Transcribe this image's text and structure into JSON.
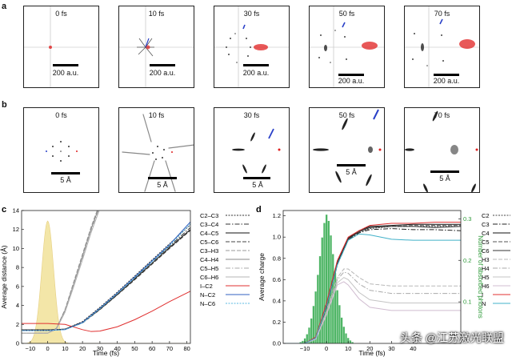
{
  "panel_a": {
    "label": "a",
    "frames": [
      {
        "time": "0 fs",
        "scale": "200 a.u."
      },
      {
        "time": "10 fs",
        "scale": "200 a.u."
      },
      {
        "time": "30 fs",
        "scale": "200 a.u."
      },
      {
        "time": "50 fs",
        "scale": "200 a.u."
      },
      {
        "time": "70 fs",
        "scale": "200 a.u."
      }
    ]
  },
  "panel_b": {
    "label": "b",
    "frames": [
      {
        "time": "0 fs",
        "scale": "5 Å"
      },
      {
        "time": "10 fs",
        "scale": "5 Å"
      },
      {
        "time": "30 fs",
        "scale": "5 Å"
      },
      {
        "time": "50 fs",
        "scale": "5 Å"
      },
      {
        "time": "70 fs",
        "scale": "5 Å"
      }
    ]
  },
  "watermark": "头条 @江苏激光联盟",
  "colors": {
    "iodine": "#e02020",
    "nitrogen": "#2a40c8",
    "pulse": "#f3e6a8",
    "photons": "#2fa84a",
    "photons_axis": "#2f9a3a"
  },
  "chart_data": [
    {
      "panel": "c",
      "type": "line",
      "xlabel": "Time (fs)",
      "ylabel": "Average distance (Å)",
      "xlim": [
        -15,
        82
      ],
      "ylim": [
        0,
        14
      ],
      "xticks": [
        -10,
        0,
        10,
        20,
        30,
        40,
        50,
        60,
        70,
        80
      ],
      "yticks": [
        0,
        2,
        4,
        6,
        8,
        10,
        12,
        14
      ],
      "legend_position": "right",
      "pulse": {
        "center": 0,
        "width": 3.4,
        "peak": 12.9
      },
      "series": [
        {
          "name": "C2–C3",
          "color": "#333333",
          "dash": "2,1.5",
          "x": [
            -15,
            0,
            10,
            20,
            30,
            40,
            50,
            60,
            70,
            82
          ],
          "y": [
            1.42,
            1.42,
            1.5,
            2.3,
            3.8,
            5.4,
            7.1,
            8.8,
            10.5,
            12.5
          ]
        },
        {
          "name": "C3–C4",
          "color": "#333333",
          "dash": "6,2,1.5,2",
          "x": [
            -15,
            0,
            10,
            20,
            30,
            40,
            50,
            60,
            70,
            82
          ],
          "y": [
            1.42,
            1.42,
            1.5,
            2.25,
            3.7,
            5.3,
            6.95,
            8.6,
            10.25,
            12.2
          ]
        },
        {
          "name": "C4–C5",
          "color": "#111111",
          "dash": "",
          "x": [
            -15,
            0,
            10,
            20,
            30,
            40,
            50,
            60,
            70,
            82
          ],
          "y": [
            1.42,
            1.42,
            1.5,
            2.2,
            3.6,
            5.15,
            6.8,
            8.45,
            10.1,
            12.0
          ]
        },
        {
          "name": "C5–C6",
          "color": "#444444",
          "dash": "5,2",
          "x": [
            -15,
            0,
            10,
            20,
            30,
            40,
            50,
            60,
            70,
            82
          ],
          "y": [
            1.42,
            1.42,
            1.5,
            2.15,
            3.55,
            5.1,
            6.7,
            8.35,
            10.0,
            11.9
          ]
        },
        {
          "name": "C3–H3",
          "color": "#999999",
          "dash": "5,2",
          "x": [
            -15,
            0,
            5,
            10,
            15,
            20,
            25,
            30
          ],
          "y": [
            1.08,
            1.08,
            1.6,
            3.6,
            6.5,
            9.4,
            12.3,
            14.8
          ]
        },
        {
          "name": "C4–H4",
          "color": "#888888",
          "dash": "",
          "x": [
            -15,
            0,
            5,
            10,
            15,
            20,
            25,
            30
          ],
          "y": [
            1.08,
            1.08,
            1.55,
            3.5,
            6.3,
            9.2,
            12.1,
            14.6
          ]
        },
        {
          "name": "C5–H5",
          "color": "#aaaaaa",
          "dash": "6,2,1.5,2",
          "x": [
            -15,
            0,
            5,
            10,
            15,
            20,
            25,
            30
          ],
          "y": [
            1.08,
            1.08,
            1.5,
            3.4,
            6.2,
            9.0,
            11.9,
            14.4
          ]
        },
        {
          "name": "C6–H6",
          "color": "#b5b5b5",
          "dash": "",
          "x": [
            -15,
            0,
            5,
            10,
            15,
            20,
            25,
            30
          ],
          "y": [
            1.08,
            1.08,
            1.5,
            3.3,
            6.0,
            8.8,
            11.7,
            14.2
          ]
        },
        {
          "name": "I–C2",
          "color": "#e03030",
          "dash": "",
          "x": [
            -15,
            0,
            10,
            20,
            25,
            30,
            40,
            50,
            60,
            70,
            82
          ],
          "y": [
            2.1,
            2.1,
            2.0,
            1.45,
            1.25,
            1.3,
            1.75,
            2.5,
            3.4,
            4.4,
            5.5
          ]
        },
        {
          "name": "N–C2",
          "color": "#3060c0",
          "dash": "",
          "x": [
            -15,
            0,
            10,
            20,
            30,
            40,
            50,
            60,
            70,
            82
          ],
          "y": [
            1.35,
            1.35,
            1.45,
            2.2,
            3.7,
            5.3,
            7.0,
            8.7,
            10.4,
            12.8
          ]
        },
        {
          "name": "N–C6",
          "color": "#58b8e0",
          "dash": "2,1.5",
          "x": [
            -15,
            0,
            10,
            20,
            30,
            40,
            50,
            60,
            70,
            82
          ],
          "y": [
            1.35,
            1.35,
            1.45,
            2.15,
            3.65,
            5.25,
            6.9,
            8.6,
            10.3,
            12.6
          ]
        }
      ]
    },
    {
      "panel": "d",
      "type": "line",
      "xlabel": "Time (fs)",
      "ylabel": "Average charge",
      "y2label": "Number of absorbed photons",
      "xlim": [
        -20,
        62
      ],
      "ylim": [
        0,
        1.25
      ],
      "y2lim": [
        0,
        0.32
      ],
      "xticks": [
        -10,
        0,
        10,
        20,
        30,
        40
      ],
      "yticks": [
        0,
        0.2,
        0.4,
        0.6,
        0.8,
        1.0,
        1.2
      ],
      "y2ticks": [
        0.1,
        0.2,
        0.3
      ],
      "legend_position": "right",
      "histogram": {
        "x": [
          -12,
          -11,
          -10,
          -9,
          -8,
          -7,
          -6,
          -5,
          -4,
          -3,
          -2,
          -1,
          0,
          1,
          2,
          3,
          4,
          5,
          6,
          7,
          8,
          9,
          10,
          11,
          12
        ],
        "y": [
          0.003,
          0.006,
          0.012,
          0.022,
          0.038,
          0.06,
          0.09,
          0.125,
          0.165,
          0.21,
          0.255,
          0.29,
          0.31,
          0.295,
          0.26,
          0.215,
          0.17,
          0.128,
          0.092,
          0.062,
          0.04,
          0.024,
          0.013,
          0.007,
          0.003
        ]
      },
      "series": [
        {
          "name": "C2",
          "color": "#444444",
          "dash": "2,1.5",
          "x": [
            -20,
            -10,
            -5,
            0,
            5,
            10,
            15,
            20,
            30,
            40,
            50,
            62
          ],
          "y": [
            0,
            0,
            0.05,
            0.35,
            0.75,
            0.98,
            1.05,
            1.08,
            1.1,
            1.1,
            1.1,
            1.1
          ]
        },
        {
          "name": "C3",
          "color": "#222222",
          "dash": "6,2,1.5,2",
          "x": [
            -20,
            -10,
            -5,
            0,
            5,
            10,
            15,
            20,
            30,
            40,
            50,
            62
          ],
          "y": [
            0,
            0,
            0.05,
            0.34,
            0.74,
            0.97,
            1.04,
            1.07,
            1.08,
            1.07,
            1.07,
            1.06
          ]
        },
        {
          "name": "C4",
          "color": "#111111",
          "dash": "",
          "x": [
            -20,
            -10,
            -5,
            0,
            5,
            10,
            15,
            20,
            30,
            40,
            50,
            62
          ],
          "y": [
            0,
            0,
            0.05,
            0.36,
            0.76,
            0.99,
            1.06,
            1.1,
            1.11,
            1.12,
            1.12,
            1.12
          ]
        },
        {
          "name": "C5",
          "color": "#555555",
          "dash": "5,2",
          "x": [
            -20,
            -10,
            -5,
            0,
            5,
            10,
            15,
            20,
            30,
            40,
            50,
            62
          ],
          "y": [
            0,
            0,
            0.05,
            0.35,
            0.75,
            0.98,
            1.05,
            1.09,
            1.1,
            1.11,
            1.11,
            1.11
          ]
        },
        {
          "name": "C6",
          "color": "#333333",
          "dash": "",
          "x": [
            -20,
            -10,
            -5,
            0,
            5,
            10,
            15,
            20,
            30,
            40,
            50,
            62
          ],
          "y": [
            0,
            0,
            0.05,
            0.34,
            0.74,
            0.98,
            1.05,
            1.09,
            1.1,
            1.1,
            1.09,
            1.1
          ]
        },
        {
          "name": "H3",
          "color": "#b8b8b8",
          "dash": "5,2",
          "x": [
            -20,
            -10,
            -5,
            0,
            5,
            8,
            10,
            15,
            20,
            30,
            40,
            50,
            62
          ],
          "y": [
            0,
            0,
            0.04,
            0.3,
            0.62,
            0.7,
            0.7,
            0.62,
            0.56,
            0.54,
            0.54,
            0.54,
            0.54
          ]
        },
        {
          "name": "H4",
          "color": "#aaaaaa",
          "dash": "6,2,1.5,2",
          "x": [
            -20,
            -10,
            -5,
            0,
            5,
            8,
            10,
            15,
            20,
            30,
            40,
            50,
            62
          ],
          "y": [
            0,
            0,
            0.04,
            0.29,
            0.6,
            0.67,
            0.66,
            0.56,
            0.5,
            0.47,
            0.47,
            0.47,
            0.47
          ]
        },
        {
          "name": "H5",
          "color": "#c4c4c4",
          "dash": "",
          "x": [
            -20,
            -10,
            -5,
            0,
            5,
            8,
            10,
            15,
            20,
            30,
            40,
            50,
            62
          ],
          "y": [
            0,
            0,
            0.04,
            0.28,
            0.57,
            0.62,
            0.6,
            0.48,
            0.41,
            0.38,
            0.38,
            0.38,
            0.38
          ]
        },
        {
          "name": "H6",
          "color": "#d0bcd0",
          "dash": "",
          "x": [
            -20,
            -10,
            -5,
            0,
            5,
            8,
            10,
            15,
            20,
            30,
            40,
            50,
            62
          ],
          "y": [
            0,
            0,
            0.04,
            0.27,
            0.55,
            0.58,
            0.55,
            0.42,
            0.34,
            0.31,
            0.31,
            0.31,
            0.31
          ]
        },
        {
          "name": "I",
          "color": "#e03030",
          "dash": "",
          "x": [
            -20,
            -10,
            -5,
            0,
            5,
            10,
            15,
            20,
            30,
            40,
            50,
            62
          ],
          "y": [
            0,
            0,
            0.06,
            0.38,
            0.78,
            1.0,
            1.06,
            1.11,
            1.13,
            1.13,
            1.14,
            1.14
          ]
        },
        {
          "name": "N",
          "color": "#40b0c8",
          "dash": "",
          "x": [
            -20,
            -10,
            -5,
            0,
            5,
            10,
            15,
            20,
            30,
            40,
            50,
            62
          ],
          "y": [
            0,
            0,
            0.05,
            0.35,
            0.74,
            0.97,
            1.03,
            1.02,
            0.98,
            0.97,
            0.97,
            0.97
          ]
        }
      ]
    }
  ]
}
